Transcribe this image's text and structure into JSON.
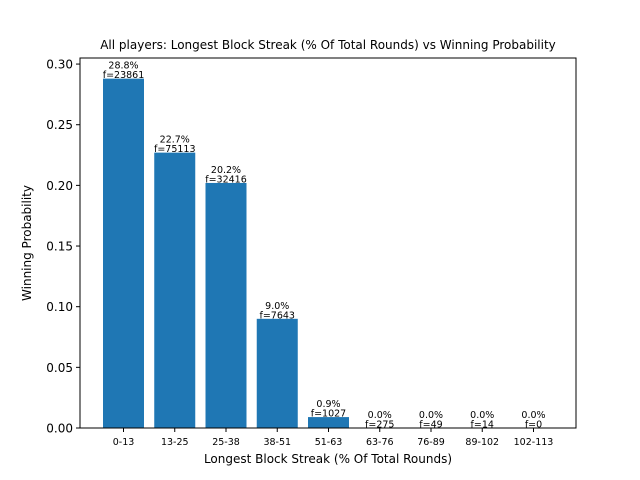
{
  "chart_data": {
    "type": "bar",
    "title": "All players: Longest Block Streak (% Of Total Rounds) vs Winning Probability",
    "xlabel": "Longest Block Streak (% Of Total Rounds)",
    "ylabel": "Winning Probability",
    "categories": [
      "0-13",
      "13-25",
      "25-38",
      "38-51",
      "51-63",
      "63-76",
      "76-89",
      "89-102",
      "102-113"
    ],
    "values": [
      0.288,
      0.227,
      0.202,
      0.09,
      0.009,
      0.0,
      0.0,
      0.0,
      0.0
    ],
    "percent_labels": [
      "28.8%",
      "22.7%",
      "20.2%",
      "9.0%",
      "0.9%",
      "0.0%",
      "0.0%",
      "0.0%",
      "0.0%"
    ],
    "freq_labels": [
      "f=23861",
      "f=75113",
      "f=32416",
      "f=7643",
      "f=1027",
      "f=275",
      "f=49",
      "f=14",
      "f=0"
    ],
    "ylim": [
      0,
      0.305
    ],
    "yticks": [
      0.0,
      0.05,
      0.1,
      0.15,
      0.2,
      0.25,
      0.3
    ],
    "ytick_labels": [
      "0.00",
      "0.05",
      "0.10",
      "0.15",
      "0.20",
      "0.25",
      "0.30"
    ],
    "bar_color": "#1f77b4",
    "grid": false,
    "legend": "none"
  }
}
